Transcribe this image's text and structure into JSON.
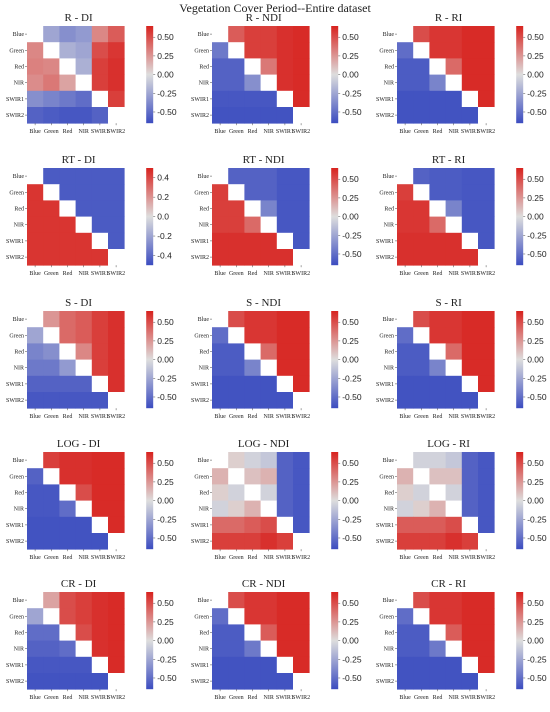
{
  "title": "Vegetation Cover Period--Entire dataset",
  "colormap": {
    "low": "#3b4cc0",
    "mid": "#dddddd",
    "high": "#d8221e"
  },
  "chart_data": [
    {
      "type": "heatmap",
      "title": "R - DI",
      "categories": [
        "Blue",
        "Green",
        "Red",
        "NIR",
        "SWIR1",
        "SWIR2"
      ],
      "colorbar_ticks": [
        "0.50",
        "0.25",
        "0.00",
        "-0.25",
        "-0.50"
      ],
      "vmin": -0.65,
      "vmax": 0.65,
      "values": [
        [
          0,
          -0.25,
          -0.35,
          -0.3,
          0.3,
          0.45
        ],
        [
          0.3,
          0,
          -0.2,
          -0.25,
          0.5,
          0.58
        ],
        [
          0.32,
          0.3,
          0,
          -0.2,
          0.55,
          0.6
        ],
        [
          0.28,
          0.35,
          0.2,
          0,
          0.55,
          0.6
        ],
        [
          -0.35,
          -0.4,
          -0.45,
          -0.5,
          0,
          0.55
        ],
        [
          -0.55,
          -0.58,
          -0.6,
          -0.6,
          -0.55,
          0
        ]
      ]
    },
    {
      "type": "heatmap",
      "title": "R - NDI",
      "categories": [
        "Blue",
        "Green",
        "Red",
        "NIR",
        "SWIR1",
        "SWIR2"
      ],
      "colorbar_ticks": [
        "0.50",
        "0.25",
        "0.00",
        "-0.25",
        "-0.50"
      ],
      "vmin": -0.65,
      "vmax": 0.65,
      "values": [
        [
          0,
          0.45,
          0.55,
          0.55,
          0.6,
          0.62
        ],
        [
          -0.45,
          0,
          0.55,
          0.55,
          0.6,
          0.62
        ],
        [
          -0.55,
          -0.55,
          0,
          0.35,
          0.6,
          0.62
        ],
        [
          -0.55,
          -0.55,
          -0.35,
          0,
          0.6,
          0.62
        ],
        [
          -0.6,
          -0.6,
          -0.6,
          -0.6,
          0,
          0.62
        ],
        [
          -0.62,
          -0.62,
          -0.62,
          -0.62,
          -0.62,
          0
        ]
      ]
    },
    {
      "type": "heatmap",
      "title": "R - RI",
      "categories": [
        "Blue",
        "Green",
        "Red",
        "NIR",
        "SWIR1",
        "SWIR2"
      ],
      "colorbar_ticks": [
        "0.50",
        "0.25",
        "0.00",
        "-0.25",
        "-0.50"
      ],
      "vmin": -0.65,
      "vmax": 0.65,
      "values": [
        [
          0,
          0.5,
          0.58,
          0.58,
          0.62,
          0.62
        ],
        [
          -0.5,
          0,
          0.58,
          0.58,
          0.62,
          0.62
        ],
        [
          -0.58,
          -0.58,
          0,
          0.4,
          0.62,
          0.62
        ],
        [
          -0.58,
          -0.58,
          -0.4,
          0,
          0.62,
          0.62
        ],
        [
          -0.62,
          -0.62,
          -0.62,
          -0.62,
          0,
          0.62
        ],
        [
          -0.62,
          -0.62,
          -0.62,
          -0.62,
          -0.62,
          0
        ]
      ]
    },
    {
      "type": "heatmap",
      "title": "RT - DI",
      "categories": [
        "Blue",
        "Green",
        "Red",
        "NIR",
        "SWIR1",
        "SWIR2"
      ],
      "colorbar_ticks": [
        "0.4",
        "0.2",
        "0.0",
        "-0.2",
        "-0.4"
      ],
      "vmin": -0.5,
      "vmax": 0.5,
      "values": [
        [
          0,
          -0.45,
          -0.45,
          -0.45,
          -0.45,
          -0.45
        ],
        [
          0.45,
          0,
          -0.45,
          -0.45,
          -0.45,
          -0.45
        ],
        [
          0.45,
          0.45,
          0,
          -0.45,
          -0.45,
          -0.45
        ],
        [
          0.45,
          0.45,
          0.45,
          0,
          -0.45,
          -0.45
        ],
        [
          0.45,
          0.45,
          0.45,
          0.45,
          0,
          -0.45
        ],
        [
          0.45,
          0.45,
          0.45,
          0.45,
          0.45,
          0
        ]
      ]
    },
    {
      "type": "heatmap",
      "title": "RT - NDI",
      "categories": [
        "Blue",
        "Green",
        "Red",
        "NIR",
        "SWIR1",
        "SWIR2"
      ],
      "colorbar_ticks": [
        "0.50",
        "0.25",
        "0.00",
        "-0.25",
        "-0.50"
      ],
      "vmin": -0.65,
      "vmax": 0.65,
      "values": [
        [
          0,
          -0.55,
          -0.55,
          -0.55,
          -0.6,
          -0.6
        ],
        [
          0.55,
          0,
          -0.55,
          -0.55,
          -0.6,
          -0.6
        ],
        [
          0.55,
          0.55,
          0,
          -0.4,
          -0.6,
          -0.6
        ],
        [
          0.55,
          0.55,
          0.4,
          0,
          -0.6,
          -0.6
        ],
        [
          0.6,
          0.6,
          0.6,
          0.6,
          0,
          -0.6
        ],
        [
          0.6,
          0.6,
          0.6,
          0.6,
          0.6,
          0
        ]
      ]
    },
    {
      "type": "heatmap",
      "title": "RT - RI",
      "categories": [
        "Blue",
        "Green",
        "Red",
        "NIR",
        "SWIR1",
        "SWIR2"
      ],
      "colorbar_ticks": [
        "0.50",
        "0.25",
        "0.00",
        "-0.25",
        "-0.50"
      ],
      "vmin": -0.65,
      "vmax": 0.65,
      "values": [
        [
          0,
          -0.55,
          -0.58,
          -0.58,
          -0.6,
          -0.6
        ],
        [
          0.55,
          0,
          -0.58,
          -0.58,
          -0.6,
          -0.6
        ],
        [
          0.58,
          0.58,
          0,
          -0.4,
          -0.6,
          -0.6
        ],
        [
          0.58,
          0.58,
          0.4,
          0,
          -0.6,
          -0.6
        ],
        [
          0.6,
          0.6,
          0.6,
          0.6,
          0,
          -0.6
        ],
        [
          0.6,
          0.6,
          0.6,
          0.6,
          0.6,
          0
        ]
      ]
    },
    {
      "type": "heatmap",
      "title": "S - DI",
      "categories": [
        "Blue",
        "Green",
        "Red",
        "NIR",
        "SWIR1",
        "SWIR2"
      ],
      "colorbar_ticks": [
        "0.50",
        "0.25",
        "0.00",
        "-0.25",
        "-0.50"
      ],
      "vmin": -0.65,
      "vmax": 0.65,
      "values": [
        [
          0,
          0.25,
          0.4,
          0.45,
          0.55,
          0.6
        ],
        [
          -0.25,
          0,
          0.4,
          0.45,
          0.55,
          0.6
        ],
        [
          -0.4,
          -0.35,
          0,
          0.3,
          0.55,
          0.6
        ],
        [
          -0.45,
          -0.45,
          -0.3,
          0,
          0.55,
          0.6
        ],
        [
          -0.55,
          -0.55,
          -0.55,
          -0.55,
          0,
          0.6
        ],
        [
          -0.6,
          -0.6,
          -0.6,
          -0.6,
          -0.6,
          0
        ]
      ]
    },
    {
      "type": "heatmap",
      "title": "S - NDI",
      "categories": [
        "Blue",
        "Green",
        "Red",
        "NIR",
        "SWIR1",
        "SWIR2"
      ],
      "colorbar_ticks": [
        "0.50",
        "0.25",
        "0.00",
        "-0.25",
        "-0.50"
      ],
      "vmin": -0.65,
      "vmax": 0.65,
      "values": [
        [
          0,
          0.5,
          0.58,
          0.58,
          0.62,
          0.62
        ],
        [
          -0.5,
          0,
          0.58,
          0.58,
          0.62,
          0.62
        ],
        [
          -0.58,
          -0.58,
          0,
          0.4,
          0.62,
          0.62
        ],
        [
          -0.58,
          -0.58,
          -0.4,
          0,
          0.62,
          0.62
        ],
        [
          -0.62,
          -0.62,
          -0.62,
          -0.62,
          0,
          0.62
        ],
        [
          -0.62,
          -0.62,
          -0.62,
          -0.62,
          -0.62,
          0
        ]
      ]
    },
    {
      "type": "heatmap",
      "title": "S - RI",
      "categories": [
        "Blue",
        "Green",
        "Red",
        "NIR",
        "SWIR1",
        "SWIR2"
      ],
      "colorbar_ticks": [
        "0.50",
        "0.25",
        "0.00",
        "-0.25",
        "-0.50"
      ],
      "vmin": -0.65,
      "vmax": 0.65,
      "values": [
        [
          0,
          0.5,
          0.58,
          0.58,
          0.62,
          0.62
        ],
        [
          -0.5,
          0,
          0.58,
          0.58,
          0.62,
          0.62
        ],
        [
          -0.58,
          -0.58,
          0,
          0.4,
          0.62,
          0.62
        ],
        [
          -0.58,
          -0.58,
          -0.4,
          0,
          0.62,
          0.62
        ],
        [
          -0.62,
          -0.62,
          -0.62,
          -0.62,
          0,
          0.62
        ],
        [
          -0.62,
          -0.62,
          -0.62,
          -0.62,
          -0.62,
          0
        ]
      ]
    },
    {
      "type": "heatmap",
      "title": "LOG - DI",
      "categories": [
        "Blue",
        "Green",
        "Red",
        "NIR",
        "SWIR1",
        "SWIR2"
      ],
      "colorbar_ticks": [
        "0.50",
        "0.25",
        "0.00",
        "-0.25",
        "-0.50"
      ],
      "vmin": -0.65,
      "vmax": 0.65,
      "values": [
        [
          0,
          0.55,
          0.6,
          0.6,
          0.62,
          0.62
        ],
        [
          -0.55,
          0,
          0.6,
          0.6,
          0.62,
          0.62
        ],
        [
          -0.6,
          -0.6,
          0,
          0.5,
          0.62,
          0.62
        ],
        [
          -0.6,
          -0.6,
          -0.5,
          0,
          0.62,
          0.62
        ],
        [
          -0.62,
          -0.62,
          -0.62,
          -0.62,
          0,
          0.62
        ],
        [
          -0.62,
          -0.62,
          -0.62,
          -0.62,
          -0.62,
          0
        ]
      ]
    },
    {
      "type": "heatmap",
      "title": "LOG - NDI",
      "categories": [
        "Blue",
        "Green",
        "Red",
        "NIR",
        "SWIR1",
        "SWIR2"
      ],
      "colorbar_ticks": [
        "0.50",
        "0.25",
        "0.00",
        "-0.25",
        "-0.50"
      ],
      "vmin": -0.65,
      "vmax": 0.65,
      "values": [
        [
          0,
          0.05,
          -0.05,
          -0.1,
          -0.55,
          -0.6
        ],
        [
          0.15,
          0,
          0.1,
          0.15,
          -0.55,
          -0.6
        ],
        [
          0.05,
          -0.05,
          0,
          -0.05,
          -0.55,
          -0.6
        ],
        [
          -0.05,
          0.05,
          0.15,
          0,
          -0.55,
          -0.6
        ],
        [
          0.4,
          0.4,
          0.45,
          0.5,
          0,
          -0.6
        ],
        [
          0.55,
          0.55,
          0.55,
          0.6,
          0.55,
          0
        ]
      ]
    },
    {
      "type": "heatmap",
      "title": "LOG - RI",
      "categories": [
        "Blue",
        "Green",
        "Red",
        "NIR",
        "SWIR1",
        "SWIR2"
      ],
      "colorbar_ticks": [
        "0.50",
        "0.25",
        "0.00",
        "-0.25",
        "-0.50"
      ],
      "vmin": -0.65,
      "vmax": 0.65,
      "values": [
        [
          0,
          -0.05,
          -0.05,
          -0.1,
          -0.55,
          -0.6
        ],
        [
          0.15,
          0,
          0.1,
          0.1,
          -0.55,
          -0.6
        ],
        [
          0.05,
          -0.05,
          0,
          -0.05,
          -0.55,
          -0.6
        ],
        [
          -0.05,
          0.05,
          0.15,
          0,
          -0.55,
          -0.6
        ],
        [
          0.45,
          0.45,
          0.45,
          0.5,
          0,
          -0.6
        ],
        [
          0.55,
          0.55,
          0.55,
          0.6,
          0.55,
          0
        ]
      ]
    },
    {
      "type": "heatmap",
      "title": "CR - DI",
      "categories": [
        "Blue",
        "Green",
        "Red",
        "NIR",
        "SWIR1",
        "SWIR2"
      ],
      "colorbar_ticks": [
        "0.50",
        "0.25",
        "0.00",
        "-0.25",
        "-0.50"
      ],
      "vmin": -0.65,
      "vmax": 0.65,
      "values": [
        [
          0,
          0.2,
          0.5,
          0.55,
          0.6,
          0.62
        ],
        [
          -0.25,
          0,
          0.5,
          0.55,
          0.6,
          0.62
        ],
        [
          -0.5,
          -0.5,
          0,
          0.5,
          0.6,
          0.62
        ],
        [
          -0.55,
          -0.55,
          -0.5,
          0,
          0.6,
          0.62
        ],
        [
          -0.6,
          -0.6,
          -0.6,
          -0.6,
          0,
          0.62
        ],
        [
          -0.62,
          -0.62,
          -0.62,
          -0.62,
          -0.62,
          0
        ]
      ]
    },
    {
      "type": "heatmap",
      "title": "CR - NDI",
      "categories": [
        "Blue",
        "Green",
        "Red",
        "NIR",
        "SWIR1",
        "SWIR2"
      ],
      "colorbar_ticks": [
        "0.50",
        "0.25",
        "0.00",
        "-0.25",
        "-0.50"
      ],
      "vmin": -0.65,
      "vmax": 0.65,
      "values": [
        [
          0,
          0.5,
          0.58,
          0.58,
          0.62,
          0.62
        ],
        [
          -0.5,
          0,
          0.58,
          0.58,
          0.62,
          0.62
        ],
        [
          -0.58,
          -0.58,
          0,
          0.45,
          0.62,
          0.62
        ],
        [
          -0.58,
          -0.58,
          -0.45,
          0,
          0.62,
          0.62
        ],
        [
          -0.62,
          -0.62,
          -0.62,
          -0.62,
          0,
          0.62
        ],
        [
          -0.62,
          -0.62,
          -0.62,
          -0.62,
          -0.62,
          0
        ]
      ]
    },
    {
      "type": "heatmap",
      "title": "CR - RI",
      "categories": [
        "Blue",
        "Green",
        "Red",
        "NIR",
        "SWIR1",
        "SWIR2"
      ],
      "colorbar_ticks": [
        "0.50",
        "0.25",
        "0.00",
        "-0.25",
        "-0.50"
      ],
      "vmin": -0.65,
      "vmax": 0.65,
      "values": [
        [
          0,
          0.5,
          0.58,
          0.58,
          0.62,
          0.62
        ],
        [
          -0.5,
          0,
          0.58,
          0.58,
          0.62,
          0.62
        ],
        [
          -0.58,
          -0.58,
          0,
          0.45,
          0.62,
          0.62
        ],
        [
          -0.58,
          -0.58,
          -0.45,
          0,
          0.62,
          0.62
        ],
        [
          -0.62,
          -0.62,
          -0.62,
          -0.62,
          0,
          0.62
        ],
        [
          -0.62,
          -0.62,
          -0.62,
          -0.62,
          -0.62,
          0
        ]
      ]
    }
  ]
}
